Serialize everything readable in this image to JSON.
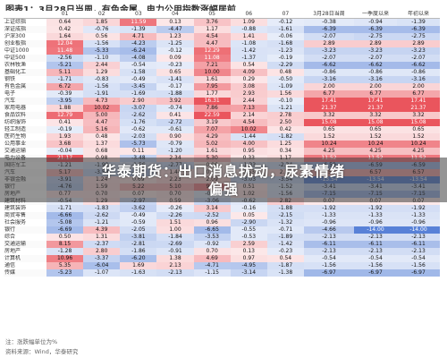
{
  "title": "图表1：3月28日当周，有色金属、电力公用指数涨幅居前",
  "headers": [
    "",
    "01",
    "02",
    "03",
    "04",
    "05",
    "06",
    "07",
    "3月28日当周",
    "一季度以来",
    "年初以来"
  ],
  "rows": [
    [
      "上证综指",
      "0.64",
      "1.85",
      "11.59",
      "0.13",
      "3.76",
      "1.09",
      "-0.12",
      "-0.38",
      "-0.94",
      "-1.39"
    ],
    [
      "深证成指",
      "0.42",
      "-0.76",
      "-1.39",
      "-4.47",
      "1.17",
      "-0.88",
      "-1.61",
      "-6.39",
      "-6.39",
      "-6.39"
    ],
    [
      "沪深300",
      "1.64",
      "0.56",
      "4.71",
      "1.23",
      "4.54",
      "1.41",
      "-0.06",
      "-2.07",
      "-2.75",
      "-2.75"
    ],
    [
      "创业板指",
      "12.04",
      "-1.56",
      "-4.23",
      "-1.25",
      "4.47",
      "-1.08",
      "-1.68",
      "2.89",
      "2.89",
      "2.89"
    ],
    [
      "中证1000",
      "11.48",
      "-5.33",
      "-6.24",
      "-0.12",
      "12.29",
      "-1.42",
      "-1.23",
      "-3.23",
      "-3.23",
      "-3.23"
    ],
    [
      "中证500",
      "-2.56",
      "-1.10",
      "-4.08",
      "0.09",
      "11.08",
      "-1.37",
      "-0.19",
      "-2.07",
      "-2.07",
      "-2.07"
    ],
    [
      "农林牧渔",
      "-5.21",
      "2.44",
      "-0.54",
      "-0.23",
      "7.21",
      "0.54",
      "-2.29",
      "-6.62",
      "-6.62",
      "-6.62"
    ],
    [
      "基础化工",
      "5.11",
      "1.29",
      "-1.58",
      "0.65",
      "10.00",
      "4.09",
      "0.48",
      "-0.86",
      "-0.86",
      "-0.86"
    ],
    [
      "钢铁",
      "-1.71",
      "-0.83",
      "-0.49",
      "-1.41",
      "1.61",
      "0.29",
      "-0.50",
      "-3.16",
      "-3.16",
      "-3.16"
    ],
    [
      "有色金属",
      "6.72",
      "-1.56",
      "-3.45",
      "-0.17",
      "7.95",
      "3.08",
      "-1.09",
      "2.00",
      "2.00",
      "2.00"
    ],
    [
      "电子",
      "-0.39",
      "-1.91",
      "-1.69",
      "-1.88",
      "1.77",
      "2.93",
      "1.56",
      "6.77",
      "6.77",
      "6.77"
    ],
    [
      "汽车",
      "-3.95",
      "4.73",
      "2.90",
      "3.92",
      "16.31",
      "2.44",
      "-0.10",
      "17.41",
      "17.41",
      "17.41"
    ],
    [
      "家用电器",
      "1.88",
      "10.02",
      "-3.07",
      "-0.74",
      "7.86",
      "7.13",
      "-1.21",
      "21.37",
      "21.37",
      "21.37"
    ],
    [
      "食品饮料",
      "12.79",
      "5.00",
      "-2.62",
      "0.41",
      "22.59",
      "2.14",
      "2.78",
      "3.32",
      "3.32",
      "3.32"
    ],
    [
      "纺织服饰",
      "0.41",
      "4.47",
      "-1.76",
      "-2.72",
      "3.19",
      "4.54",
      "2.50",
      "15.08",
      "15.08",
      "15.08"
    ],
    [
      "轻工制造",
      "-0.19",
      "5.16",
      "-0.62",
      "-0.61",
      "7.07",
      "10.02",
      "0.42",
      "0.65",
      "0.65",
      "0.65"
    ],
    [
      "医药生物",
      "1.93",
      "0.48",
      "-2.03",
      "0.90",
      "4.29",
      "-1.44",
      "-1.82",
      "1.52",
      "1.52",
      "1.52"
    ],
    [
      "公用事业",
      "3.68",
      "1.37",
      "-5.73",
      "-0.79",
      "5.02",
      "4.00",
      "1.25",
      "10.24",
      "10.24",
      "10.24"
    ],
    [
      "交通运输",
      "-0.04",
      "0.68",
      "0.11",
      "-1.20",
      "1.61",
      "0.95",
      "0.34",
      "4.25",
      "4.25",
      "4.25"
    ],
    [
      "电力设备",
      "21.17",
      "0.98",
      "-3.48",
      "2.34",
      "5.30",
      "0.33",
      "1.17",
      "11.52",
      "11.52",
      "11.52"
    ],
    [
      "国防军工",
      "-1.21",
      "-1.99",
      "-1.56",
      "-2.77",
      "0.06",
      "-1.33",
      "-2.34",
      "-6.59",
      "-6.59",
      "-6.59"
    ],
    [
      "汽车",
      "5.17",
      "-3.58",
      "-5.08",
      "1.44",
      "0.73",
      "0.53",
      "2.12",
      "6.57",
      "6.57",
      "6.57"
    ],
    [
      "非银金融",
      "-3.91",
      "1.24",
      "0.69",
      "2.23",
      "2.09",
      "-3.03",
      "-3.54",
      "-13.54",
      "-13.54",
      "-13.54"
    ],
    [
      "银行",
      "-4.76",
      "1.59",
      "5.22",
      "5.10",
      "9.97",
      "0.51",
      "-1.52",
      "-3.41",
      "-3.41",
      "-3.41"
    ],
    [
      "房地产",
      "0.77",
      "0.70",
      "0.07",
      "0.70",
      "-0.97",
      "1.02",
      "-1.56",
      "-7.15",
      "-7.15",
      "-7.15"
    ],
    [
      "建筑材料",
      "-0.54",
      "1.29",
      "-2.97",
      "0.59",
      "-3.06",
      "-0.62",
      "2.82",
      "0.07",
      "0.07",
      "0.07"
    ],
    [
      "建筑装饰",
      "-1.71",
      "-1.83",
      "-3.62",
      "-0.26",
      "3.14",
      "-0.16",
      "-1.88",
      "-1.92",
      "-1.92",
      "-1.92"
    ],
    [
      "商贸零售",
      "-6.66",
      "-2.62",
      "-0.49",
      "-2.26",
      "-2.52",
      "0.05",
      "-2.15",
      "-1.33",
      "-1.33",
      "-1.33"
    ],
    [
      "社会服务",
      "-5.08",
      "-1.21",
      "-0.59",
      "1.51",
      "0.96",
      "-2.90",
      "-1.32",
      "-0.96",
      "-0.96",
      "-0.96"
    ],
    [
      "银行",
      "-6.69",
      "4.39",
      "-2.05",
      "1.00",
      "-6.65",
      "-0.55",
      "-0.71",
      "-4.66",
      "-14.00",
      "-14.00"
    ],
    [
      "综合",
      "0.50",
      "1.31",
      "-3.81",
      "-1.84",
      "-3.53",
      "-0.53",
      "-1.89",
      "-2.13",
      "-2.13",
      "-2.13"
    ],
    [
      "交通运输",
      "8.15",
      "-2.37",
      "-2.81",
      "-2.69",
      "-0.92",
      "2.59",
      "-1.42",
      "-6.11",
      "-6.11",
      "-6.11"
    ],
    [
      "房地产",
      "-1.28",
      "2.80",
      "-1.86",
      "-0.91",
      "0.70",
      "0.13",
      "-0.23",
      "-2.13",
      "-2.13",
      "-2.13"
    ],
    [
      "计算机",
      "10.96",
      "-3.37",
      "-6.20",
      "1.38",
      "4.69",
      "0.97",
      "0.54",
      "-0.54",
      "-0.54",
      "-0.54"
    ],
    [
      "通信",
      "5.35",
      "-6.04",
      "1.69",
      "2.13",
      "-4.71",
      "-4.95",
      "-1.87",
      "-1.56",
      "-1.56",
      "-1.56"
    ],
    [
      "传媒",
      "-5.23",
      "-1.07",
      "-1.63",
      "-2.13",
      "-1.15",
      "-3.14",
      "-1.38",
      "-6.97",
      "-6.97",
      "-6.97"
    ]
  ],
  "watermark": {
    "line1": "华泰期货：出口消息扰动，尿素情绪",
    "line2": "偏强"
  },
  "notes": {
    "unit": "注：涨跌幅单位为%",
    "source": "资料来源：Wind，华泰研究"
  },
  "colors": {
    "pos": "#e8424b",
    "neg": "#3a6bd0"
  }
}
